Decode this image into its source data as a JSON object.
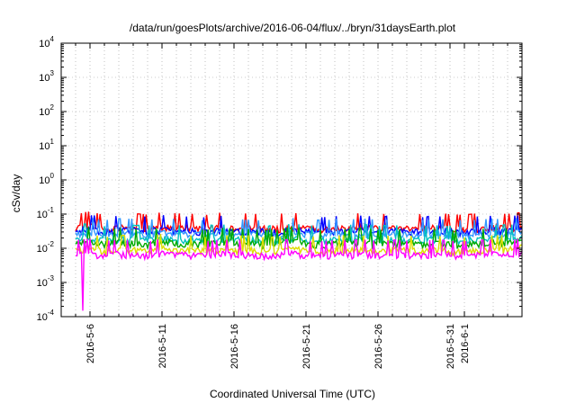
{
  "chart_data": {
    "type": "line",
    "title": "/data/run/goesPlots/archive/2016-06-04/flux/../bryn/31daysEarth.plot",
    "xlabel": "Coordinated Universal Time (UTC)",
    "ylabel": "cSv/day",
    "yscale": "log",
    "ylim": [
      0.0001,
      10000
    ],
    "xlim": [
      "2016-05-04",
      "2016-06-05"
    ],
    "grid": true,
    "legend": "none",
    "yticks": [
      {
        "base": "10",
        "exp": "-4"
      },
      {
        "base": "10",
        "exp": "-3"
      },
      {
        "base": "10",
        "exp": "-2"
      },
      {
        "base": "10",
        "exp": "-1"
      },
      {
        "base": "10",
        "exp": "0"
      },
      {
        "base": "10",
        "exp": "1"
      },
      {
        "base": "10",
        "exp": "2"
      },
      {
        "base": "10",
        "exp": "3"
      },
      {
        "base": "10",
        "exp": "4"
      }
    ],
    "xticks": [
      "2016-5-6",
      "2016-5-11",
      "2016-5-16",
      "2016-5-21",
      "2016-5-26",
      "2016-5-31",
      "2016-6-1"
    ],
    "series": [
      {
        "color": "#ff0000",
        "values": [
          0.038,
          0.045,
          0.036,
          0.041,
          0.039,
          0.037,
          0.042,
          0.04,
          0.038,
          0.036,
          0.041,
          0.04,
          0.039,
          0.038,
          0.037,
          0.042,
          0.038,
          0.036,
          0.04,
          0.039,
          0.041,
          0.038,
          0.04,
          0.039,
          0.037,
          0.04,
          0.038,
          0.036,
          0.039,
          0.041,
          0.038,
          0.042
        ]
      },
      {
        "color": "#0000ff",
        "values": [
          0.032,
          0.036,
          0.03,
          0.034,
          0.033,
          0.031,
          0.035,
          0.033,
          0.032,
          0.03,
          0.034,
          0.033,
          0.032,
          0.031,
          0.03,
          0.035,
          0.032,
          0.03,
          0.033,
          0.032,
          0.034,
          0.031,
          0.033,
          0.032,
          0.031,
          0.033,
          0.031,
          0.03,
          0.032,
          0.034,
          0.032,
          0.036
        ]
      },
      {
        "color": "#3399ff",
        "values": [
          0.026,
          0.029,
          0.025,
          0.028,
          0.027,
          0.025,
          0.029,
          0.027,
          0.026,
          0.025,
          0.028,
          0.027,
          0.026,
          0.025,
          0.025,
          0.029,
          0.026,
          0.025,
          0.027,
          0.026,
          0.028,
          0.025,
          0.027,
          0.026,
          0.025,
          0.027,
          0.026,
          0.025,
          0.026,
          0.028,
          0.026,
          0.03
        ]
      },
      {
        "color": "#00c0c0",
        "values": [
          0.018,
          0.02,
          0.017,
          0.019,
          0.018,
          0.017,
          0.02,
          0.018,
          0.018,
          0.017,
          0.019,
          0.018,
          0.018,
          0.017,
          0.017,
          0.02,
          0.018,
          0.017,
          0.018,
          0.018,
          0.019,
          0.017,
          0.018,
          0.018,
          0.017,
          0.018,
          0.017,
          0.017,
          0.018,
          0.019,
          0.018,
          0.021
        ]
      },
      {
        "color": "#00aa00",
        "values": [
          0.014,
          0.016,
          0.013,
          0.015,
          0.014,
          0.013,
          0.016,
          0.014,
          0.014,
          0.013,
          0.015,
          0.014,
          0.014,
          0.013,
          0.013,
          0.016,
          0.014,
          0.013,
          0.014,
          0.014,
          0.015,
          0.013,
          0.014,
          0.014,
          0.013,
          0.014,
          0.013,
          0.013,
          0.014,
          0.015,
          0.014,
          0.017
        ]
      },
      {
        "color": "#dddd00",
        "values": [
          0.009,
          0.01,
          0.008,
          0.009,
          0.009,
          0.008,
          0.01,
          0.009,
          0.009,
          0.008,
          0.009,
          0.009,
          0.009,
          0.008,
          0.008,
          0.01,
          0.009,
          0.008,
          0.009,
          0.009,
          0.009,
          0.008,
          0.009,
          0.009,
          0.008,
          0.009,
          0.008,
          0.008,
          0.009,
          0.009,
          0.009,
          0.011
        ]
      },
      {
        "color": "#ff00ff",
        "values": [
          0.0065,
          0.0072,
          0.006,
          0.0068,
          0.0066,
          0.0061,
          0.007,
          0.0066,
          0.0064,
          0.006,
          0.0068,
          0.0066,
          0.0065,
          0.0062,
          0.006,
          0.0071,
          0.0064,
          0.006,
          0.0066,
          0.0064,
          0.0068,
          0.0061,
          0.0066,
          0.0064,
          0.0061,
          0.0066,
          0.0062,
          0.006,
          0.0064,
          0.0068,
          0.0064,
          0.0075
        ],
        "min_value": 0.00015
      }
    ]
  }
}
